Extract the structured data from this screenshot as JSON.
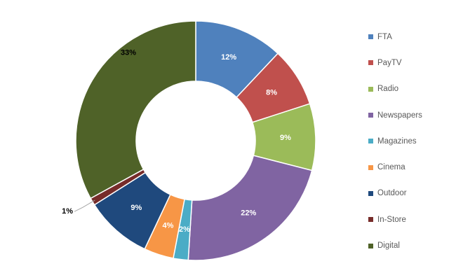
{
  "chart_data": {
    "type": "pie",
    "categories": [
      "FTA",
      "PayTV",
      "Radio",
      "Newspapers",
      "Magazines",
      "Cinema",
      "Outdoor",
      "In-Store",
      "Digital"
    ],
    "values": [
      12,
      8,
      9,
      22,
      2,
      4,
      9,
      1,
      33
    ],
    "data_labels": [
      "12%",
      "8%",
      "9%",
      "22%",
      "2%",
      "4%",
      "9%",
      "1%",
      "33%"
    ],
    "colors": [
      "#4f81bd",
      "#c0504d",
      "#9bbb59",
      "#8064a2",
      "#4bacc6",
      "#f79646",
      "#1f497d",
      "#772c2a",
      "#4f6228"
    ],
    "label_colors": [
      "#ffffff",
      "#ffffff",
      "#ffffff",
      "#ffffff",
      "#ffffff",
      "#ffffff",
      "#ffffff",
      "#000000",
      "#000000"
    ],
    "donut": true,
    "legend_position": "right",
    "title": ""
  }
}
